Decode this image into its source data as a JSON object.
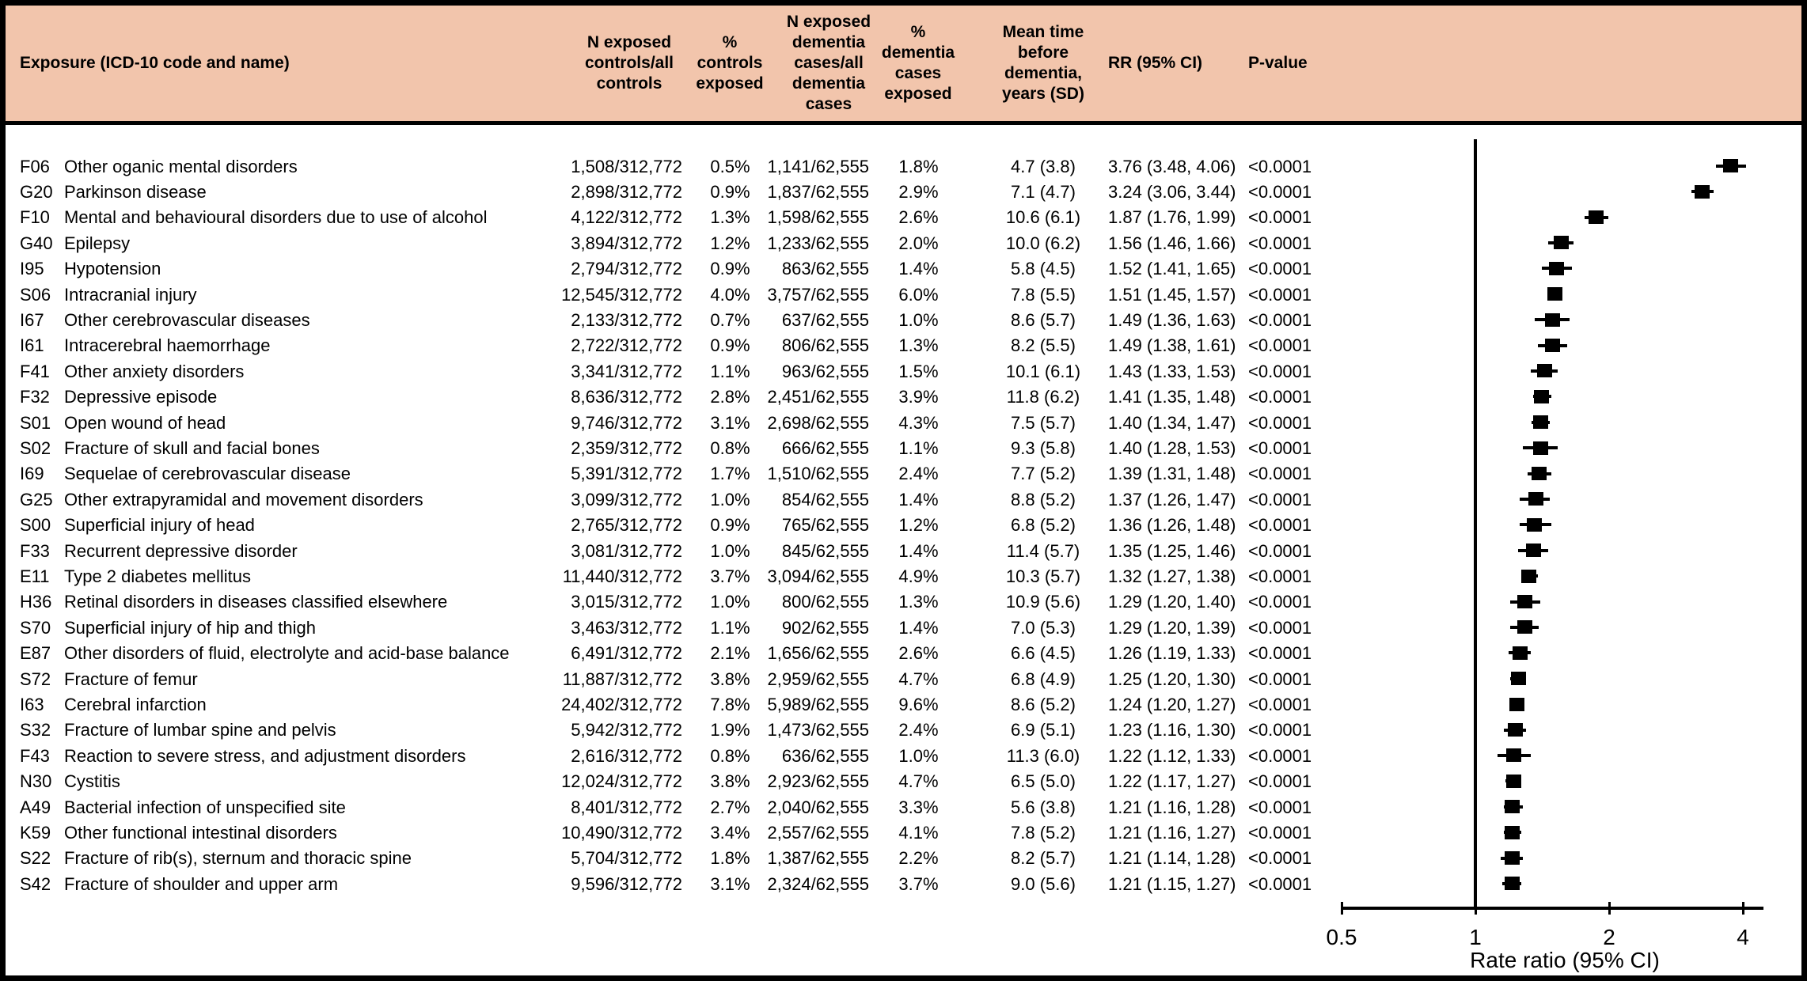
{
  "header": {
    "exposure": "Exposure (ICD-10 code and name)",
    "n_controls": "N exposed\ncontrols/all\ncontrols",
    "pct_controls": "%\ncontrols\nexposed",
    "n_cases": "N exposed\ndementia\ncases/all\ndementia\ncases",
    "pct_cases": "%\ndementia\ncases\nexposed",
    "mean_time": "Mean time\nbefore\ndementia,\nyears (SD)",
    "rr": "RR (95% CI)",
    "p": "P-value"
  },
  "colors": {
    "header_bg": "#f2c5ac",
    "ink": "#000000"
  },
  "table": {
    "rows": [
      {
        "code": "F06",
        "name": "Other oganic mental disorders",
        "n_controls": "1,508/312,772",
        "pct_controls": "0.5%",
        "n_cases": "1,141/62,555",
        "pct_cases": "1.8%",
        "mean_time": "4.7 (3.8)",
        "rr_ci": "3.76 (3.48, 4.06)",
        "p": "<0.0001"
      },
      {
        "code": "G20",
        "name": "Parkinson disease",
        "n_controls": "2,898/312,772",
        "pct_controls": "0.9%",
        "n_cases": "1,837/62,555",
        "pct_cases": "2.9%",
        "mean_time": "7.1 (4.7)",
        "rr_ci": "3.24 (3.06, 3.44)",
        "p": "<0.0001"
      },
      {
        "code": "F10",
        "name": "Mental and behavioural disorders due to use of alcohol",
        "n_controls": "4,122/312,772",
        "pct_controls": "1.3%",
        "n_cases": "1,598/62,555",
        "pct_cases": "2.6%",
        "mean_time": "10.6 (6.1)",
        "rr_ci": "1.87 (1.76, 1.99)",
        "p": "<0.0001"
      },
      {
        "code": "G40",
        "name": "Epilepsy",
        "n_controls": "3,894/312,772",
        "pct_controls": "1.2%",
        "n_cases": "1,233/62,555",
        "pct_cases": "2.0%",
        "mean_time": "10.0 (6.2)",
        "rr_ci": "1.56 (1.46, 1.66)",
        "p": "<0.0001"
      },
      {
        "code": "I95",
        "name": "Hypotension",
        "n_controls": "2,794/312,772",
        "pct_controls": "0.9%",
        "n_cases": "863/62,555",
        "pct_cases": "1.4%",
        "mean_time": "5.8 (4.5)",
        "rr_ci": "1.52 (1.41, 1.65)",
        "p": "<0.0001"
      },
      {
        "code": "S06",
        "name": "Intracranial injury",
        "n_controls": "12,545/312,772",
        "pct_controls": "4.0%",
        "n_cases": "3,757/62,555",
        "pct_cases": "6.0%",
        "mean_time": "7.8 (5.5)",
        "rr_ci": "1.51 (1.45, 1.57)",
        "p": "<0.0001"
      },
      {
        "code": "I67",
        "name": "Other cerebrovascular diseases",
        "n_controls": "2,133/312,772",
        "pct_controls": "0.7%",
        "n_cases": "637/62,555",
        "pct_cases": "1.0%",
        "mean_time": "8.6 (5.7)",
        "rr_ci": "1.49 (1.36, 1.63)",
        "p": "<0.0001"
      },
      {
        "code": "I61",
        "name": "Intracerebral haemorrhage",
        "n_controls": "2,722/312,772",
        "pct_controls": "0.9%",
        "n_cases": "806/62,555",
        "pct_cases": "1.3%",
        "mean_time": "8.2 (5.5)",
        "rr_ci": "1.49 (1.38, 1.61)",
        "p": "<0.0001"
      },
      {
        "code": "F41",
        "name": "Other anxiety disorders",
        "n_controls": "3,341/312,772",
        "pct_controls": "1.1%",
        "n_cases": "963/62,555",
        "pct_cases": "1.5%",
        "mean_time": "10.1 (6.1)",
        "rr_ci": "1.43 (1.33, 1.53)",
        "p": "<0.0001"
      },
      {
        "code": "F32",
        "name": "Depressive episode",
        "n_controls": "8,636/312,772",
        "pct_controls": "2.8%",
        "n_cases": "2,451/62,555",
        "pct_cases": "3.9%",
        "mean_time": "11.8 (6.2)",
        "rr_ci": "1.41 (1.35, 1.48)",
        "p": "<0.0001"
      },
      {
        "code": "S01",
        "name": "Open wound of head",
        "n_controls": "9,746/312,772",
        "pct_controls": "3.1%",
        "n_cases": "2,698/62,555",
        "pct_cases": "4.3%",
        "mean_time": "7.5 (5.7)",
        "rr_ci": "1.40 (1.34, 1.47)",
        "p": "<0.0001"
      },
      {
        "code": "S02",
        "name": "Fracture of skull and facial bones",
        "n_controls": "2,359/312,772",
        "pct_controls": "0.8%",
        "n_cases": "666/62,555",
        "pct_cases": "1.1%",
        "mean_time": "9.3 (5.8)",
        "rr_ci": "1.40 (1.28, 1.53)",
        "p": "<0.0001"
      },
      {
        "code": "I69",
        "name": "Sequelae of cerebrovascular disease",
        "n_controls": "5,391/312,772",
        "pct_controls": "1.7%",
        "n_cases": "1,510/62,555",
        "pct_cases": "2.4%",
        "mean_time": "7.7 (5.2)",
        "rr_ci": "1.39 (1.31, 1.48)",
        "p": "<0.0001"
      },
      {
        "code": "G25",
        "name": "Other extrapyramidal and movement disorders",
        "n_controls": "3,099/312,772",
        "pct_controls": "1.0%",
        "n_cases": "854/62,555",
        "pct_cases": "1.4%",
        "mean_time": "8.8 (5.2)",
        "rr_ci": "1.37 (1.26, 1.47)",
        "p": "<0.0001"
      },
      {
        "code": "S00",
        "name": "Superficial injury of head",
        "n_controls": "2,765/312,772",
        "pct_controls": "0.9%",
        "n_cases": "765/62,555",
        "pct_cases": "1.2%",
        "mean_time": "6.8 (5.2)",
        "rr_ci": "1.36 (1.26, 1.48)",
        "p": "<0.0001"
      },
      {
        "code": "F33",
        "name": "Recurrent depressive disorder",
        "n_controls": "3,081/312,772",
        "pct_controls": "1.0%",
        "n_cases": "845/62,555",
        "pct_cases": "1.4%",
        "mean_time": "11.4 (5.7)",
        "rr_ci": "1.35 (1.25, 1.46)",
        "p": "<0.0001"
      },
      {
        "code": "E11",
        "name": "Type 2 diabetes mellitus",
        "n_controls": "11,440/312,772",
        "pct_controls": "3.7%",
        "n_cases": "3,094/62,555",
        "pct_cases": "4.9%",
        "mean_time": "10.3 (5.7)",
        "rr_ci": "1.32 (1.27, 1.38)",
        "p": "<0.0001"
      },
      {
        "code": "H36",
        "name": "Retinal disorders in diseases classified elsewhere",
        "n_controls": "3,015/312,772",
        "pct_controls": "1.0%",
        "n_cases": "800/62,555",
        "pct_cases": "1.3%",
        "mean_time": "10.9 (5.6)",
        "rr_ci": "1.29 (1.20, 1.40)",
        "p": "<0.0001"
      },
      {
        "code": "S70",
        "name": "Superficial injury of hip and thigh",
        "n_controls": "3,463/312,772",
        "pct_controls": "1.1%",
        "n_cases": "902/62,555",
        "pct_cases": "1.4%",
        "mean_time": "7.0 (5.3)",
        "rr_ci": "1.29 (1.20, 1.39)",
        "p": "<0.0001"
      },
      {
        "code": "E87",
        "name": "Other disorders of fluid, electrolyte and acid-base balance",
        "n_controls": "6,491/312,772",
        "pct_controls": "2.1%",
        "n_cases": "1,656/62,555",
        "pct_cases": "2.6%",
        "mean_time": "6.6 (4.5)",
        "rr_ci": "1.26 (1.19, 1.33)",
        "p": "<0.0001"
      },
      {
        "code": "S72",
        "name": "Fracture of femur",
        "n_controls": "11,887/312,772",
        "pct_controls": "3.8%",
        "n_cases": "2,959/62,555",
        "pct_cases": "4.7%",
        "mean_time": "6.8 (4.9)",
        "rr_ci": "1.25 (1.20, 1.30)",
        "p": "<0.0001"
      },
      {
        "code": "I63",
        "name": "Cerebral infarction",
        "n_controls": "24,402/312,772",
        "pct_controls": "7.8%",
        "n_cases": "5,989/62,555",
        "pct_cases": "9.6%",
        "mean_time": "8.6 (5.2)",
        "rr_ci": "1.24 (1.20, 1.27)",
        "p": "<0.0001"
      },
      {
        "code": "S32",
        "name": "Fracture of lumbar spine and pelvis",
        "n_controls": "5,942/312,772",
        "pct_controls": "1.9%",
        "n_cases": "1,473/62,555",
        "pct_cases": "2.4%",
        "mean_time": "6.9 (5.1)",
        "rr_ci": "1.23 (1.16, 1.30)",
        "p": "<0.0001"
      },
      {
        "code": "F43",
        "name": "Reaction to severe stress, and adjustment disorders",
        "n_controls": "2,616/312,772",
        "pct_controls": "0.8%",
        "n_cases": "636/62,555",
        "pct_cases": "1.0%",
        "mean_time": "11.3 (6.0)",
        "rr_ci": "1.22 (1.12, 1.33)",
        "p": "<0.0001"
      },
      {
        "code": "N30",
        "name": "Cystitis",
        "n_controls": "12,024/312,772",
        "pct_controls": "3.8%",
        "n_cases": "2,923/62,555",
        "pct_cases": "4.7%",
        "mean_time": "6.5 (5.0)",
        "rr_ci": "1.22 (1.17, 1.27)",
        "p": "<0.0001"
      },
      {
        "code": "A49",
        "name": "Bacterial infection of unspecified site",
        "n_controls": "8,401/312,772",
        "pct_controls": "2.7%",
        "n_cases": "2,040/62,555",
        "pct_cases": "3.3%",
        "mean_time": "5.6 (3.8)",
        "rr_ci": "1.21 (1.16, 1.28)",
        "p": "<0.0001"
      },
      {
        "code": "K59",
        "name": "Other functional intestinal disorders",
        "n_controls": "10,490/312,772",
        "pct_controls": "3.4%",
        "n_cases": "2,557/62,555",
        "pct_cases": "4.1%",
        "mean_time": "7.8 (5.2)",
        "rr_ci": "1.21 (1.16, 1.27)",
        "p": "<0.0001"
      },
      {
        "code": "S22",
        "name": "Fracture of rib(s), sternum and thoracic spine",
        "n_controls": "5,704/312,772",
        "pct_controls": "1.8%",
        "n_cases": "1,387/62,555",
        "pct_cases": "2.2%",
        "mean_time": "8.2 (5.7)",
        "rr_ci": "1.21 (1.14, 1.28)",
        "p": "<0.0001"
      },
      {
        "code": "S42",
        "name": "Fracture of shoulder and upper arm",
        "n_controls": "9,596/312,772",
        "pct_controls": "3.1%",
        "n_cases": "2,324/62,555",
        "pct_cases": "3.7%",
        "mean_time": "9.0 (5.6)",
        "rr_ci": "1.21 (1.15, 1.27)",
        "p": "<0.0001"
      }
    ]
  },
  "chart_data": {
    "type": "scatter",
    "subtype": "forest-plot",
    "xlabel": "Rate ratio (95% CI)",
    "x_scale": "log2",
    "x_ticks": [
      0.5,
      1,
      2,
      4
    ],
    "x_tick_labels": [
      "0.5",
      "1",
      "2",
      "4"
    ],
    "xlim": [
      0.5,
      4.4
    ],
    "reference_line": 1,
    "grid": false,
    "points": [
      {
        "label": "F06",
        "rr": 3.76,
        "ci_low": 3.48,
        "ci_high": 4.06
      },
      {
        "label": "G20",
        "rr": 3.24,
        "ci_low": 3.06,
        "ci_high": 3.44
      },
      {
        "label": "F10",
        "rr": 1.87,
        "ci_low": 1.76,
        "ci_high": 1.99
      },
      {
        "label": "G40",
        "rr": 1.56,
        "ci_low": 1.46,
        "ci_high": 1.66
      },
      {
        "label": "I95",
        "rr": 1.52,
        "ci_low": 1.41,
        "ci_high": 1.65
      },
      {
        "label": "S06",
        "rr": 1.51,
        "ci_low": 1.45,
        "ci_high": 1.57
      },
      {
        "label": "I67",
        "rr": 1.49,
        "ci_low": 1.36,
        "ci_high": 1.63
      },
      {
        "label": "I61",
        "rr": 1.49,
        "ci_low": 1.38,
        "ci_high": 1.61
      },
      {
        "label": "F41",
        "rr": 1.43,
        "ci_low": 1.33,
        "ci_high": 1.53
      },
      {
        "label": "F32",
        "rr": 1.41,
        "ci_low": 1.35,
        "ci_high": 1.48
      },
      {
        "label": "S01",
        "rr": 1.4,
        "ci_low": 1.34,
        "ci_high": 1.47
      },
      {
        "label": "S02",
        "rr": 1.4,
        "ci_low": 1.28,
        "ci_high": 1.53
      },
      {
        "label": "I69",
        "rr": 1.39,
        "ci_low": 1.31,
        "ci_high": 1.48
      },
      {
        "label": "G25",
        "rr": 1.37,
        "ci_low": 1.26,
        "ci_high": 1.47
      },
      {
        "label": "S00",
        "rr": 1.36,
        "ci_low": 1.26,
        "ci_high": 1.48
      },
      {
        "label": "F33",
        "rr": 1.35,
        "ci_low": 1.25,
        "ci_high": 1.46
      },
      {
        "label": "E11",
        "rr": 1.32,
        "ci_low": 1.27,
        "ci_high": 1.38
      },
      {
        "label": "H36",
        "rr": 1.29,
        "ci_low": 1.2,
        "ci_high": 1.4
      },
      {
        "label": "S70",
        "rr": 1.29,
        "ci_low": 1.2,
        "ci_high": 1.39
      },
      {
        "label": "E87",
        "rr": 1.26,
        "ci_low": 1.19,
        "ci_high": 1.33
      },
      {
        "label": "S72",
        "rr": 1.25,
        "ci_low": 1.2,
        "ci_high": 1.3
      },
      {
        "label": "I63",
        "rr": 1.24,
        "ci_low": 1.2,
        "ci_high": 1.27
      },
      {
        "label": "S32",
        "rr": 1.23,
        "ci_low": 1.16,
        "ci_high": 1.3
      },
      {
        "label": "F43",
        "rr": 1.22,
        "ci_low": 1.12,
        "ci_high": 1.33
      },
      {
        "label": "N30",
        "rr": 1.22,
        "ci_low": 1.17,
        "ci_high": 1.27
      },
      {
        "label": "A49",
        "rr": 1.21,
        "ci_low": 1.16,
        "ci_high": 1.28
      },
      {
        "label": "K59",
        "rr": 1.21,
        "ci_low": 1.16,
        "ci_high": 1.27
      },
      {
        "label": "S22",
        "rr": 1.21,
        "ci_low": 1.14,
        "ci_high": 1.28
      },
      {
        "label": "S42",
        "rr": 1.21,
        "ci_low": 1.15,
        "ci_high": 1.27
      }
    ]
  }
}
